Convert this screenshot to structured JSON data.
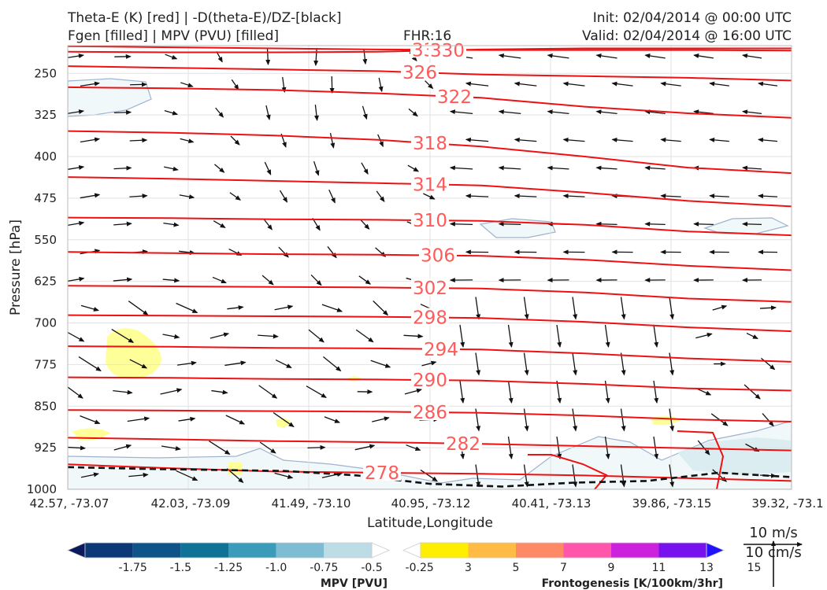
{
  "header": {
    "title_line1": "Theta-E (K) [red] | -D(theta-E)/DZ-[black]",
    "title_line2": "Fgen [filled] | MPV (PVU) [filled]",
    "fhr": "FHR:16",
    "init": "Init: 02/04/2014 @ 00:00 UTC",
    "valid": "Valid: 02/04/2014 @ 16:00 UTC"
  },
  "chart_data": {
    "type": "cross-section",
    "xlabel": "Latitude,Longitude",
    "ylabel": "Pressure [hPa]",
    "ylim": [
      1000,
      200
    ],
    "y_ticks": [
      "250",
      "325",
      "400",
      "475",
      "550",
      "625",
      "700",
      "775",
      "850",
      "925",
      "1000"
    ],
    "x_ticks": [
      "42.57, -73.07",
      "42.03, -73.09",
      "41.49, -73.10",
      "40.95, -73.12",
      "40.41, -73.13",
      "39.86, -73.15",
      "39.32, -73.1"
    ],
    "theta_e_color": "#ee1111",
    "theta_e_label_color": "#ff5a5a",
    "theta_e_contours": [
      {
        "label": "334",
        "p": [
          201,
          203,
          205,
          207,
          208,
          208,
          208,
          209
        ]
      },
      {
        "label": "330",
        "p": [
          211,
          212,
          212,
          211,
          207,
          205,
          205,
          205
        ]
      },
      {
        "label": "326",
        "p": [
          237,
          240,
          243,
          246,
          252,
          255,
          258,
          263
        ]
      },
      {
        "label": "322",
        "p": [
          275,
          277,
          280,
          286,
          294,
          310,
          322,
          330
        ]
      },
      {
        "label": "318",
        "p": [
          354,
          357,
          362,
          370,
          382,
          400,
          420,
          430
        ]
      },
      {
        "label": "314",
        "p": [
          437,
          440,
          444,
          448,
          452,
          465,
          480,
          490
        ]
      },
      {
        "label": "310",
        "p": [
          510,
          511,
          513,
          514,
          516,
          523,
          535,
          542
        ]
      },
      {
        "label": "306",
        "p": [
          572,
          574,
          576,
          577,
          579,
          586,
          597,
          605
        ]
      },
      {
        "label": "302",
        "p": [
          633,
          634,
          635,
          636,
          638,
          645,
          656,
          662
        ]
      },
      {
        "label": "298",
        "p": [
          686,
          687,
          688,
          689,
          691,
          698,
          708,
          715
        ]
      },
      {
        "label": "294",
        "p": [
          742,
          743,
          745,
          746,
          748,
          755,
          764,
          770
        ]
      },
      {
        "label": "290",
        "p": [
          798,
          799,
          801,
          802,
          804,
          810,
          818,
          822
        ]
      },
      {
        "label": "286",
        "p": [
          857,
          858,
          859,
          860,
          862,
          867,
          874,
          878
        ]
      },
      {
        "label": "282",
        "p": [
          907,
          910,
          913,
          915,
          918,
          922,
          926,
          930
        ]
      },
      {
        "label": "278",
        "p": [
          955,
          962,
          968,
          970,
          972,
          975,
          980,
          985
        ]
      }
    ],
    "dtheta_line_color": "#111111",
    "dtheta_zero_p": [
      960,
      963,
      965,
      967,
      975,
      990,
      995,
      988,
      985,
      970,
      978
    ],
    "mpv_legend": {
      "label": "MPV [PVU]",
      "ticks": [
        "-1.75",
        "-1.5",
        "-1.25",
        "-1.0",
        "-0.75",
        "-0.5",
        "-0.25"
      ],
      "colors": [
        "#0a1a5c",
        "#0b3877",
        "#0e5488",
        "#0f7297",
        "#3a9bbb",
        "#7dbcd3",
        "#bddde6",
        "#ffffff"
      ]
    },
    "fgen_legend": {
      "label": "Frontogenesis [K/100km/3hr]",
      "ticks": [
        "3",
        "5",
        "7",
        "9",
        "11",
        "13",
        "15"
      ],
      "colors": [
        "#ffffff",
        "#ffee00",
        "#ffbb44",
        "#ff8866",
        "#ff55aa",
        "#cc22dd",
        "#7711ee",
        "#2211ff"
      ]
    },
    "wind_scale": {
      "u_label": "10 m/s",
      "w_label": "10 cm/s"
    },
    "grid": true
  }
}
